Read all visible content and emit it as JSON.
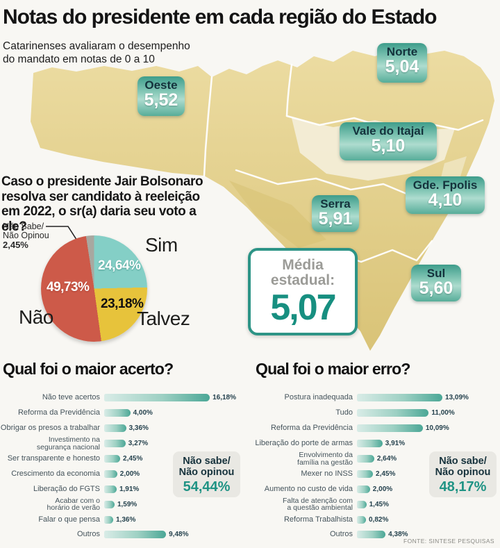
{
  "header": {
    "title": "Notas do presidente em cada região do Estado",
    "subtitle_line1": "Catarinenses avaliaram o desempenho",
    "subtitle_line2": "do mandato em notas de 0 a 10"
  },
  "map": {
    "regions": [
      {
        "name": "Oeste",
        "score": "5,52"
      },
      {
        "name": "Norte",
        "score": "5,04"
      },
      {
        "name": "Vale do Itajaí",
        "score": "5,10"
      },
      {
        "name": "Gde. Fpolis",
        "score": "4,10"
      },
      {
        "name": "Serra",
        "score": "5,91"
      },
      {
        "name": "Sul",
        "score": "5,60"
      }
    ],
    "state_average": {
      "label_line1": "Média",
      "label_line2": "estadual:",
      "value": "5,07"
    }
  },
  "poll": {
    "question": "Caso o presidente Jair Bolsonaro resolva ser candidato à reeleição em 2022, o sr(a) daria seu voto a ele?",
    "callout": {
      "line1": "Não Sabe/",
      "line2": "Não Opinou",
      "value": "2,45%"
    }
  },
  "chart_data": [
    {
      "type": "pie",
      "title": "Caso o presidente Jair Bolsonaro resolva ser candidato à reeleição em 2022, o sr(a) daria seu voto a ele?",
      "slices": [
        {
          "label": "Sim",
          "value": 24.64,
          "display": "24,64%",
          "color": "#84cfc6"
        },
        {
          "label": "Talvez",
          "value": 23.18,
          "display": "23,18%",
          "color": "#e7c33b"
        },
        {
          "label": "Não",
          "value": 49.73,
          "display": "49,73%",
          "color": "#cd5a49"
        },
        {
          "label": "Não Sabe/Não Opinou",
          "value": 2.45,
          "display": "2,45%",
          "color": "#a8a8a0"
        }
      ],
      "start_angle_deg": 0,
      "direction": "clockwise"
    },
    {
      "type": "bar",
      "title": "Qual foi o maior acerto?",
      "categories": [
        "Não teve acertos",
        "Reforma da Previdência",
        "Obrigar os presos a trabalhar",
        "Investimento na\nsegurança nacional",
        "Ser transparente e honesto",
        "Crescimento da economia",
        "Liberação do FGTS",
        "Acabar com o\nhorário de verão",
        "Falar o que pensa",
        "Outros"
      ],
      "values": [
        16.18,
        4.0,
        3.36,
        3.27,
        2.45,
        2.0,
        1.91,
        1.59,
        1.36,
        9.48
      ],
      "displays": [
        "16,18%",
        "4,00%",
        "3,36%",
        "3,27%",
        "2,45%",
        "2,00%",
        "1,91%",
        "1,59%",
        "1,36%",
        "9,48%"
      ],
      "no_answer": {
        "line1": "Não sabe/",
        "line2": "Não opinou",
        "value": "54,44%"
      },
      "xlim": [
        0,
        17
      ]
    },
    {
      "type": "bar",
      "title": "Qual foi o maior erro?",
      "categories": [
        "Postura inadequada",
        "Tudo",
        "Reforma da Previdência",
        "Liberação do porte de armas",
        "Envolvimento da\nfamília na gestão",
        "Mexer no INSS",
        "Aumento no custo de vida",
        "Falta de atenção com\na questão ambiental",
        "Reforma Trabalhista",
        "Outros"
      ],
      "values": [
        13.09,
        11.0,
        10.09,
        3.91,
        2.64,
        2.45,
        2.0,
        1.45,
        0.82,
        4.38
      ],
      "displays": [
        "13,09%",
        "11,00%",
        "10,09%",
        "3,91%",
        "2,64%",
        "2,45%",
        "2,00%",
        "1,45%",
        "0,82%",
        "4,38%"
      ],
      "no_answer": {
        "line1": "Não sabe/",
        "line2": "Não opinou",
        "value": "48,17%"
      },
      "xlim": [
        0,
        17
      ]
    }
  ],
  "colors": {
    "accent_teal": "#1f9384",
    "badge_teal_dark": "#3e9d8b",
    "badge_teal_light": "#aedccf",
    "map_base": "#e3d28d",
    "map_light": "#f4eeda",
    "bar_gradient_end": "#4ba796",
    "pie_sim": "#84cfc6",
    "pie_talvez": "#e7c33b",
    "pie_nao": "#cd5a49",
    "pie_ns": "#a8a8a0"
  },
  "footer": {
    "source": "FONTE: SINTESE PESQUISAS"
  }
}
